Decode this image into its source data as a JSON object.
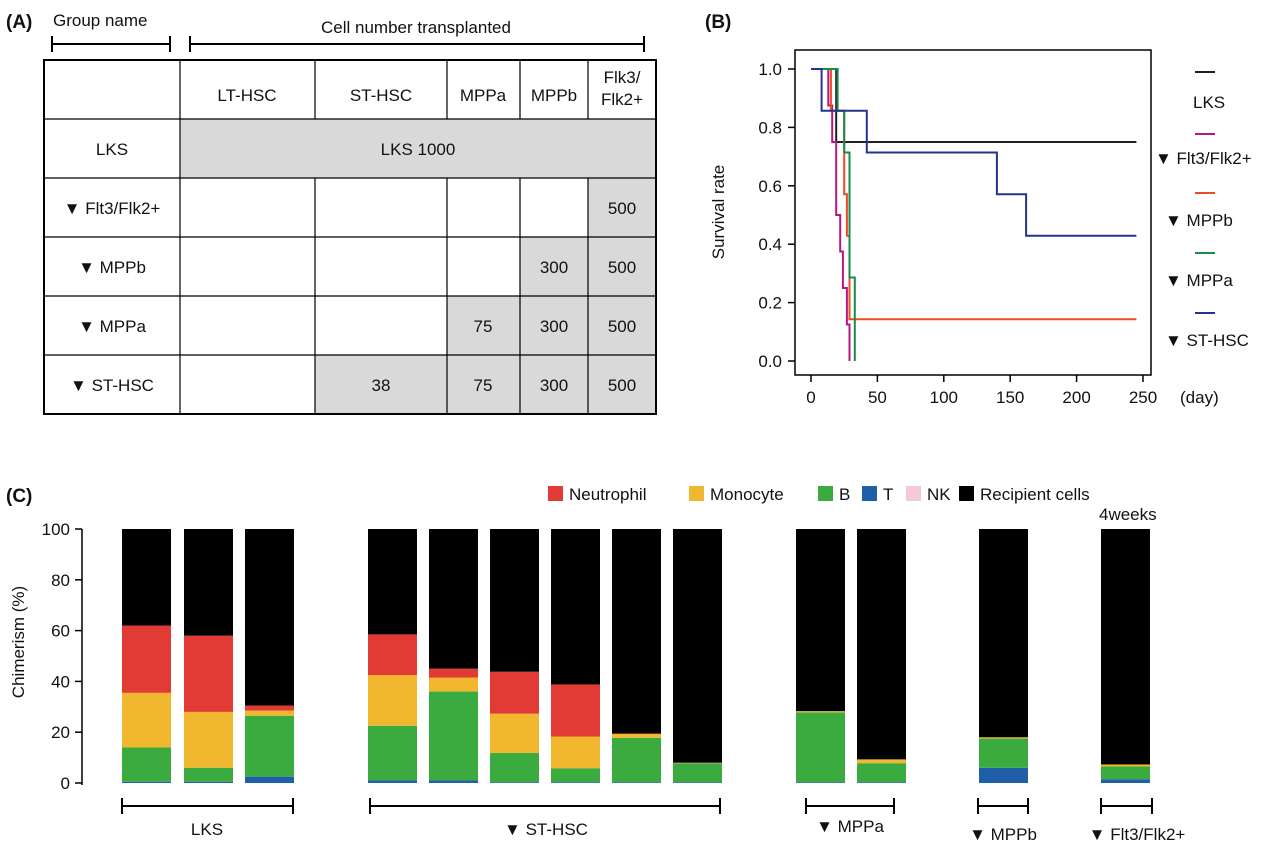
{
  "panels": {
    "a": "(A)",
    "b": "(B)",
    "c": "(C)"
  },
  "table": {
    "group_name_header": "Group name",
    "cell_number_header": "Cell number transplanted",
    "columns": [
      "LT-HSC",
      "ST-HSC",
      "MPPa",
      "MPPb",
      "Flk3/",
      "Flk2+"
    ],
    "rows": [
      "LKS",
      "▼ Flt3/Flk2+",
      "▼ MPPb",
      "▼ MPPa",
      "▼ ST-HSC"
    ],
    "lks_span_label": "LKS 1000",
    "flt3_row": {
      "flk": "500"
    },
    "mppb_row": {
      "mppb": "300",
      "flk": "500"
    },
    "mppa_row": {
      "mppa": "75",
      "mppb": "300",
      "flk": "500"
    },
    "sthsc_row": {
      "sthsc": "38",
      "mppa": "75",
      "mppb": "300",
      "flk": "500"
    },
    "fill_color": "#d9d9d9"
  },
  "survival": {
    "ylabel": "Survival rate",
    "x_unit": "(day)",
    "xlim": [
      0,
      250
    ],
    "ylim": [
      0,
      1.0
    ],
    "xticks": [
      "0",
      "50",
      "100",
      "150",
      "200",
      "250"
    ],
    "yticks": [
      "0.0",
      "0.2",
      "0.4",
      "0.6",
      "0.8",
      "1.0"
    ],
    "legend": [
      "LKS",
      "▼ Flt3/Flk2+",
      "▼ MPPb",
      "▼ MPPa",
      "▼ ST-HSC"
    ]
  },
  "chimerism": {
    "ylabel": "Chimerism (%)",
    "time_label": "4weeks",
    "yticks": [
      "0",
      "20",
      "40",
      "60",
      "80",
      "100"
    ],
    "legend": [
      "Neutrophil",
      "Monocyte",
      "B",
      "T",
      "NK",
      "Recipient cells"
    ],
    "groups": [
      "LKS",
      "▼ ST-HSC",
      "▼ MPPa",
      "▼ MPPb",
      "▼ Flt3/Flk2+"
    ]
  },
  "colors": {
    "neutrophil": "#e23a34",
    "monocyte": "#f0b72f",
    "b": "#3bab3f",
    "t": "#1f5fa8",
    "nk": "#f3c9d9",
    "recipient": "#000000",
    "lks": "#231f20",
    "flt3": "#b5197f",
    "mppb": "#ef4a23",
    "mppa": "#1a8b48",
    "sthsc": "#22348d"
  },
  "chart_data": [
    {
      "type": "line",
      "chart": "survival",
      "xlabel": "(day)",
      "ylabel": "Survival rate",
      "xlim": [
        0,
        250
      ],
      "ylim": [
        0,
        1.0
      ],
      "series": [
        {
          "name": "LKS",
          "steps": [
            [
              0,
              1.0
            ],
            [
              19,
              1.0
            ],
            [
              19,
              0.75
            ],
            [
              245,
              0.75
            ]
          ]
        },
        {
          "name": "▼ Flt3/Flk2+",
          "steps": [
            [
              0,
              1.0
            ],
            [
              13,
              1.0
            ],
            [
              13,
              0.875
            ],
            [
              16,
              0.875
            ],
            [
              16,
              0.75
            ],
            [
              19,
              0.75
            ],
            [
              19,
              0.5
            ],
            [
              22,
              0.5
            ],
            [
              22,
              0.375
            ],
            [
              24,
              0.375
            ],
            [
              24,
              0.25
            ],
            [
              27,
              0.25
            ],
            [
              27,
              0.125
            ],
            [
              29,
              0.125
            ],
            [
              29,
              0.0
            ]
          ]
        },
        {
          "name": "▼ MPPb",
          "steps": [
            [
              0,
              1.0
            ],
            [
              15,
              1.0
            ],
            [
              15,
              0.857
            ],
            [
              25,
              0.857
            ],
            [
              25,
              0.571
            ],
            [
              27,
              0.571
            ],
            [
              27,
              0.429
            ],
            [
              29,
              0.429
            ],
            [
              29,
              0.143
            ],
            [
              245,
              0.143
            ]
          ]
        },
        {
          "name": "▼ MPPa",
          "steps": [
            [
              0,
              1.0
            ],
            [
              20,
              1.0
            ],
            [
              20,
              0.857
            ],
            [
              25,
              0.857
            ],
            [
              25,
              0.714
            ],
            [
              29,
              0.714
            ],
            [
              29,
              0.286
            ],
            [
              33,
              0.286
            ],
            [
              33,
              0.0
            ]
          ]
        },
        {
          "name": "▼ ST-HSC",
          "steps": [
            [
              0,
              1.0
            ],
            [
              8,
              1.0
            ],
            [
              8,
              0.857
            ],
            [
              42,
              0.857
            ],
            [
              42,
              0.714
            ],
            [
              140,
              0.714
            ],
            [
              140,
              0.571
            ],
            [
              162,
              0.571
            ],
            [
              162,
              0.429
            ],
            [
              245,
              0.429
            ]
          ]
        }
      ]
    },
    {
      "type": "bar",
      "stacked": true,
      "chart": "chimerism",
      "ylabel": "Chimerism (%)",
      "ylim": [
        0,
        100
      ],
      "categories": [
        "LKS-1",
        "LKS-2",
        "LKS-3",
        "ST-HSC-1",
        "ST-HSC-2",
        "ST-HSC-3",
        "ST-HSC-4",
        "ST-HSC-5",
        "ST-HSC-6",
        "MPPa-1",
        "MPPa-2",
        "MPPb-1",
        "Flt3-1"
      ],
      "series": [
        {
          "name": "T",
          "values": [
            0.5,
            0.5,
            2.5,
            1,
            1,
            0.3,
            0.3,
            0.3,
            0.3,
            0.3,
            0.3,
            6,
            1.5
          ]
        },
        {
          "name": "B",
          "values": [
            13.5,
            5.5,
            24,
            21.5,
            35,
            11.5,
            5.5,
            17.5,
            7.5,
            27.5,
            7.5,
            11.5,
            5
          ]
        },
        {
          "name": "Monocyte",
          "values": [
            21.5,
            22,
            2,
            20,
            5.5,
            15.5,
            12.5,
            1.5,
            0.2,
            0.5,
            1.5,
            0.5,
            0.8
          ]
        },
        {
          "name": "Neutrophil",
          "values": [
            26.5,
            30,
            2,
            16,
            3.5,
            16.5,
            20.5,
            0.2,
            0,
            0,
            0,
            0,
            0
          ]
        },
        {
          "name": "NK",
          "values": [
            0,
            0,
            0,
            0,
            0,
            0,
            0,
            0,
            0,
            0,
            0,
            0,
            0
          ]
        },
        {
          "name": "Recipient cells",
          "values": [
            38,
            42,
            69.5,
            41.5,
            55,
            56.2,
            61.2,
            80.5,
            92,
            71.7,
            90.7,
            82,
            92.7
          ]
        }
      ]
    }
  ]
}
